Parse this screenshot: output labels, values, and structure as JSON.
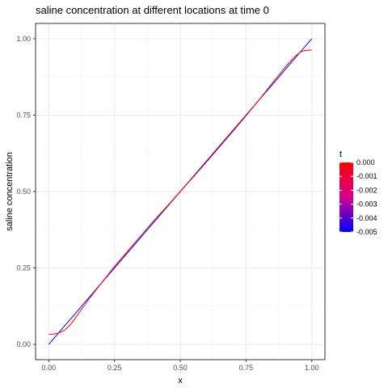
{
  "chart_data": {
    "type": "line",
    "title": "saline concentration at different locations at time 0",
    "xlabel": "x",
    "ylabel": "saline concentration",
    "xlim": [
      -0.05,
      1.05
    ],
    "ylim": [
      -0.05,
      1.05
    ],
    "x_ticks": [
      0.0,
      0.25,
      0.5,
      0.75,
      1.0
    ],
    "x_tick_labels": [
      "0.00",
      "0.25",
      "0.50",
      "0.75",
      "1.00"
    ],
    "y_ticks": [
      0.0,
      0.25,
      0.5,
      0.75,
      1.0
    ],
    "y_tick_labels": [
      "0.00",
      "0.25",
      "0.50",
      "0.75",
      "1.00"
    ],
    "grid": true,
    "legend": {
      "title": "t",
      "placement": "right",
      "type": "colorbar",
      "range": [
        -0.005,
        0.0
      ],
      "ticks": [
        0.0,
        -0.001,
        -0.002,
        -0.003,
        -0.004,
        -0.005
      ],
      "tick_labels": [
        "0.000",
        "-0.001",
        "-0.002",
        "-0.003",
        "-0.004",
        "-0.005"
      ],
      "color_high": "#ff0000",
      "color_low": "#0000ff"
    },
    "series": [
      {
        "t": -0.005,
        "color": "#0000ff",
        "x": [
          0.0,
          0.05,
          0.1,
          0.15,
          0.2,
          0.25,
          0.3,
          0.35,
          0.4,
          0.45,
          0.5,
          0.55,
          0.6,
          0.65,
          0.7,
          0.75,
          0.8,
          0.85,
          0.9,
          0.95,
          1.0
        ],
        "y": [
          0.0,
          0.05,
          0.1,
          0.15,
          0.2,
          0.25,
          0.3,
          0.35,
          0.4,
          0.45,
          0.5,
          0.55,
          0.6,
          0.65,
          0.7,
          0.75,
          0.8,
          0.85,
          0.9,
          0.95,
          1.0
        ]
      },
      {
        "t": 0.0,
        "color": "#ff0000",
        "x": [
          0.0,
          0.02,
          0.04,
          0.06,
          0.08,
          0.1,
          0.15,
          0.2,
          0.25,
          0.3,
          0.35,
          0.4,
          0.45,
          0.5,
          0.55,
          0.6,
          0.65,
          0.7,
          0.75,
          0.8,
          0.85,
          0.9,
          0.92,
          0.94,
          0.96,
          0.98,
          1.0
        ],
        "y": [
          0.033,
          0.034,
          0.038,
          0.046,
          0.062,
          0.085,
          0.145,
          0.2,
          0.255,
          0.305,
          0.355,
          0.405,
          0.452,
          0.5,
          0.548,
          0.597,
          0.647,
          0.697,
          0.748,
          0.8,
          0.855,
          0.908,
          0.927,
          0.945,
          0.958,
          0.962,
          0.963
        ]
      }
    ]
  }
}
